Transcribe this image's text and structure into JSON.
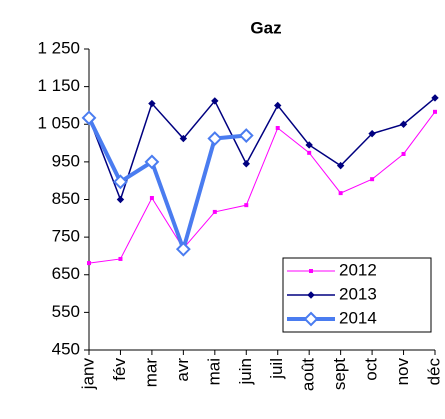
{
  "chart_data": {
    "type": "line",
    "title": "Gaz",
    "categories": [
      "janv",
      "fév",
      "mar",
      "avr",
      "mai",
      "juin",
      "juil",
      "août",
      "sept",
      "oct",
      "nov",
      "déc"
    ],
    "series": [
      {
        "name": "2012",
        "color": "#ff00ff",
        "values": [
          681,
          692,
          854,
          720,
          817,
          835,
          1040,
          974,
          867,
          904,
          971,
          1083
        ]
      },
      {
        "name": "2013",
        "color": "#000080",
        "values": [
          1067,
          850,
          1105,
          1012,
          1112,
          945,
          1100,
          995,
          940,
          1025,
          1050,
          1120
        ]
      },
      {
        "name": "2014",
        "color": "#4a7cf0",
        "values": [
          1067,
          897,
          950,
          718,
          1012,
          1020,
          null,
          null,
          null,
          null,
          null,
          null
        ]
      }
    ],
    "ylim": [
      450,
      1250
    ],
    "yticks": [
      {
        "value": 450,
        "label": "450"
      },
      {
        "value": 550,
        "label": "550"
      },
      {
        "value": 650,
        "label": "650"
      },
      {
        "value": 750,
        "label": "750"
      },
      {
        "value": 850,
        "label": "850"
      },
      {
        "value": 950,
        "label": "950"
      },
      {
        "value": 1050,
        "label": "1 050"
      },
      {
        "value": 1150,
        "label": "1 150"
      },
      {
        "value": 1250,
        "label": "1 250"
      }
    ],
    "legend": "lower right"
  }
}
